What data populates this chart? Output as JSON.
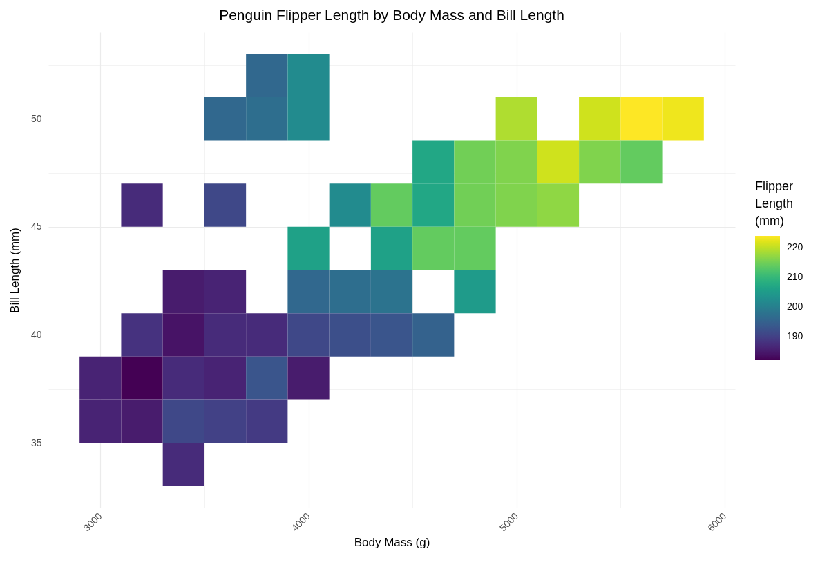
{
  "chart_data": {
    "type": "heatmap",
    "title": "Penguin Flipper Length by Body Mass and Bill Length",
    "xlabel": "Body Mass (g)",
    "ylabel": "Bill Length (mm)",
    "clabel": "Flipper\nLength\n(mm)",
    "x": [
      3000,
      3200,
      3400,
      3600,
      3800,
      4000,
      4200,
      4400,
      4600,
      4800,
      5000,
      5200,
      5400,
      5600,
      5800
    ],
    "y": [
      52,
      50,
      48,
      46,
      44,
      42,
      40,
      38,
      36,
      34
    ],
    "cells": [
      [
        null,
        null,
        null,
        null,
        196,
        202,
        null,
        null,
        null,
        null,
        null,
        null,
        null,
        null,
        null
      ],
      [
        null,
        null,
        null,
        196,
        197,
        202,
        null,
        null,
        null,
        null,
        219,
        null,
        221,
        224,
        223
      ],
      [
        null,
        null,
        null,
        null,
        null,
        null,
        null,
        null,
        207,
        215,
        216,
        221,
        216,
        214,
        null
      ],
      [
        null,
        187,
        null,
        191,
        null,
        null,
        202,
        214,
        207,
        215,
        216,
        217,
        null,
        null,
        null
      ],
      [
        null,
        null,
        null,
        null,
        null,
        206,
        null,
        206,
        214,
        214,
        null,
        null,
        null,
        null,
        null
      ],
      [
        null,
        null,
        185,
        186,
        null,
        196,
        197,
        198,
        null,
        205,
        null,
        null,
        null,
        null,
        null
      ],
      [
        null,
        188,
        184,
        187,
        187,
        191,
        192,
        193,
        195,
        null,
        null,
        null,
        null,
        null,
        null
      ],
      [
        186,
        182,
        187,
        186,
        193,
        185,
        null,
        null,
        null,
        null,
        null,
        null,
        null,
        null,
        null
      ],
      [
        186,
        185,
        191,
        190,
        189,
        null,
        null,
        null,
        null,
        null,
        null,
        null,
        null,
        null,
        null
      ],
      [
        null,
        null,
        187,
        null,
        null,
        null,
        null,
        null,
        null,
        null,
        null,
        null,
        null,
        null,
        null
      ]
    ],
    "clim": [
      182,
      224
    ],
    "cticks": [
      190,
      200,
      210,
      220
    ],
    "xlim": [
      2750,
      6050
    ],
    "xticks": [
      3000,
      {
        "value": 3500,
        "label": null
      },
      4000,
      {
        "value": 4500,
        "label": null
      },
      5000,
      {
        "value": 5500,
        "label": null
      },
      6000
    ],
    "ylim": [
      32,
      54
    ],
    "yticks": [
      {
        "value": 32.5,
        "label": null
      },
      35,
      {
        "value": 37.5,
        "label": null
      },
      40,
      {
        "value": 42.5,
        "label": null
      },
      45,
      {
        "value": 47.5,
        "label": null
      },
      50,
      {
        "value": 52.5,
        "label": null
      }
    ],
    "grid": true
  }
}
